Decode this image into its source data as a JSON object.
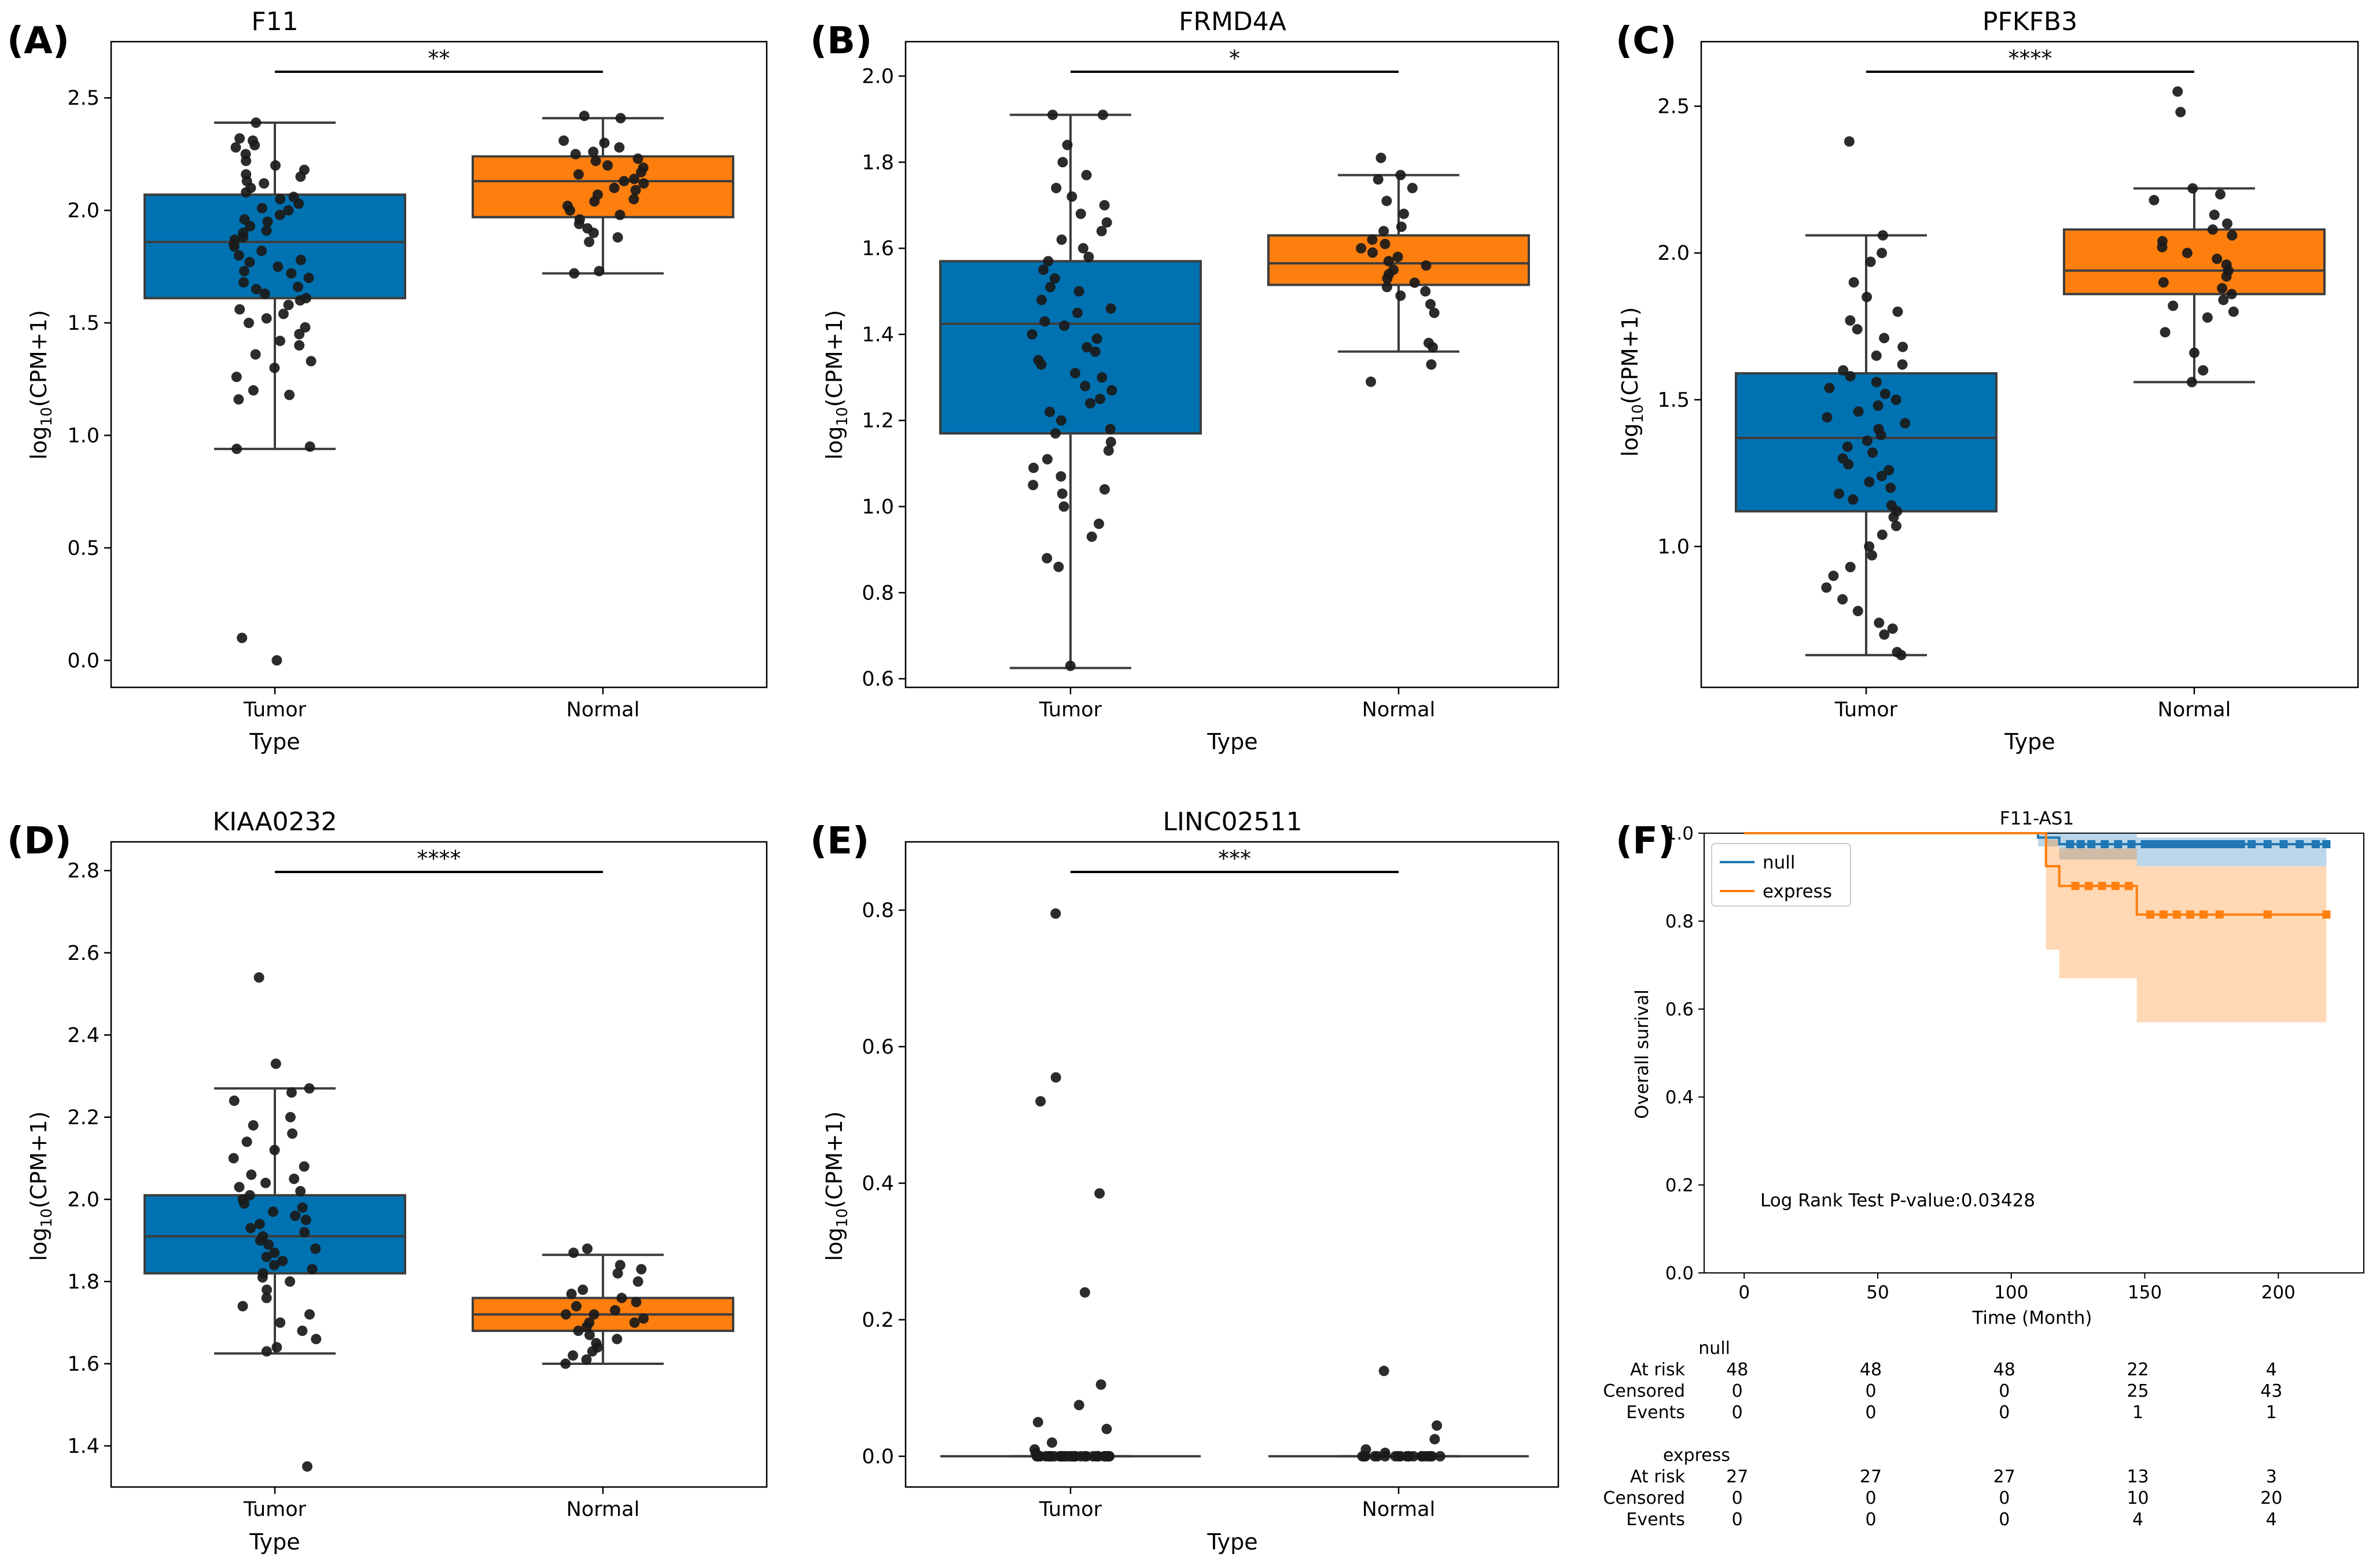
{
  "colors": {
    "tumor": "#0072b2",
    "normal": "#ff7f0e",
    "edge": "#3d3d3d",
    "point": "#1a1a1a",
    "km_null": "#1f77b4",
    "km_express": "#ff7f0e"
  },
  "chart_data": [
    {
      "panel": "(A)",
      "type": "box",
      "title": "F11",
      "xlabel": "Type",
      "ylabel": "log10(CPM+1)",
      "ylim": [
        -0.12,
        2.75
      ],
      "yticks": [
        0.0,
        0.5,
        1.0,
        1.5,
        2.0,
        2.5
      ],
      "ytick_labels": [
        "0.0",
        "0.5",
        "1.0",
        "1.5",
        "2.0",
        "2.5"
      ],
      "categories": [
        "Tumor",
        "Normal"
      ],
      "boxes": [
        {
          "name": "Tumor",
          "whisker_low": 0.94,
          "q1": 1.61,
          "median": 1.86,
          "q3": 2.07,
          "whisker_high": 2.39,
          "points": [
            2.39,
            2.32,
            2.31,
            2.29,
            2.28,
            2.25,
            2.22,
            2.2,
            2.18,
            2.16,
            2.15,
            2.13,
            2.12,
            2.1,
            2.08,
            2.06,
            2.05,
            2.03,
            2.01,
            2.0,
            1.98,
            1.96,
            1.95,
            1.93,
            1.91,
            1.9,
            1.88,
            1.87,
            1.85,
            1.84,
            1.82,
            1.8,
            1.78,
            1.77,
            1.75,
            1.73,
            1.72,
            1.7,
            1.68,
            1.66,
            1.65,
            1.63,
            1.61,
            1.6,
            1.58,
            1.56,
            1.54,
            1.52,
            1.5,
            1.48,
            1.45,
            1.42,
            1.4,
            1.36,
            1.33,
            1.3,
            1.26,
            1.2,
            1.18,
            1.16,
            0.95,
            0.94,
            0.1,
            0.0
          ]
        },
        {
          "name": "Normal",
          "whisker_low": 1.72,
          "q1": 1.97,
          "median": 2.13,
          "q3": 2.24,
          "whisker_high": 2.41,
          "points": [
            2.42,
            2.41,
            2.31,
            2.3,
            2.28,
            2.26,
            2.25,
            2.23,
            2.22,
            2.2,
            2.19,
            2.17,
            2.16,
            2.14,
            2.13,
            2.12,
            2.1,
            2.09,
            2.07,
            2.05,
            2.04,
            2.02,
            2.0,
            1.98,
            1.96,
            1.94,
            1.92,
            1.9,
            1.88,
            1.86,
            1.73,
            1.72
          ]
        }
      ],
      "significance": "**"
    },
    {
      "panel": "(B)",
      "type": "box",
      "title": "FRMD4A",
      "xlabel": "Type",
      "ylabel": "log10(CPM+1)",
      "ylim": [
        0.58,
        2.08
      ],
      "yticks": [
        0.6,
        0.8,
        1.0,
        1.2,
        1.4,
        1.6,
        1.8,
        2.0
      ],
      "ytick_labels": [
        "0.6",
        "0.8",
        "1.0",
        "1.2",
        "1.4",
        "1.6",
        "1.8",
        "2.0"
      ],
      "categories": [
        "Tumor",
        "Normal"
      ],
      "boxes": [
        {
          "name": "Tumor",
          "whisker_low": 0.625,
          "q1": 1.17,
          "median": 1.425,
          "q3": 1.57,
          "whisker_high": 1.91,
          "points": [
            1.91,
            1.91,
            1.84,
            1.8,
            1.77,
            1.74,
            1.72,
            1.7,
            1.68,
            1.66,
            1.64,
            1.62,
            1.6,
            1.58,
            1.57,
            1.55,
            1.53,
            1.51,
            1.5,
            1.48,
            1.46,
            1.45,
            1.43,
            1.42,
            1.4,
            1.39,
            1.37,
            1.36,
            1.34,
            1.33,
            1.31,
            1.3,
            1.28,
            1.27,
            1.25,
            1.24,
            1.22,
            1.2,
            1.18,
            1.17,
            1.15,
            1.13,
            1.11,
            1.09,
            1.07,
            1.05,
            1.04,
            1.03,
            1.0,
            0.96,
            0.93,
            0.88,
            0.86,
            0.63
          ]
        },
        {
          "name": "Normal",
          "whisker_low": 1.36,
          "q1": 1.515,
          "median": 1.565,
          "q3": 1.63,
          "whisker_high": 1.77,
          "points": [
            1.81,
            1.77,
            1.76,
            1.74,
            1.71,
            1.68,
            1.65,
            1.64,
            1.62,
            1.61,
            1.6,
            1.59,
            1.58,
            1.57,
            1.56,
            1.55,
            1.54,
            1.53,
            1.52,
            1.51,
            1.5,
            1.49,
            1.47,
            1.45,
            1.38,
            1.37,
            1.33,
            1.29
          ]
        }
      ],
      "significance": "*"
    },
    {
      "panel": "(C)",
      "type": "box",
      "title": "PFKFB3",
      "xlabel": "Type",
      "ylabel": "log10(CPM+1)",
      "ylim": [
        0.52,
        2.72
      ],
      "yticks": [
        1.0,
        1.5,
        2.0,
        2.5
      ],
      "ytick_labels": [
        "1.0",
        "1.5",
        "2.0",
        "2.5"
      ],
      "categories": [
        "Tumor",
        "Normal"
      ],
      "boxes": [
        {
          "name": "Tumor",
          "whisker_low": 0.63,
          "q1": 1.12,
          "median": 1.37,
          "q3": 1.59,
          "whisker_high": 2.06,
          "points": [
            2.38,
            2.06,
            2.0,
            1.97,
            1.9,
            1.85,
            1.8,
            1.77,
            1.74,
            1.71,
            1.68,
            1.65,
            1.62,
            1.6,
            1.58,
            1.56,
            1.54,
            1.52,
            1.5,
            1.48,
            1.46,
            1.44,
            1.42,
            1.4,
            1.38,
            1.36,
            1.34,
            1.32,
            1.3,
            1.28,
            1.26,
            1.24,
            1.22,
            1.2,
            1.18,
            1.16,
            1.14,
            1.12,
            1.1,
            1.07,
            1.04,
            1.0,
            0.97,
            0.93,
            0.9,
            0.86,
            0.82,
            0.78,
            0.74,
            0.72,
            0.7,
            0.64,
            0.63
          ]
        },
        {
          "name": "Normal",
          "whisker_low": 1.56,
          "q1": 1.86,
          "median": 1.94,
          "q3": 2.08,
          "whisker_high": 2.22,
          "points": [
            2.55,
            2.48,
            2.22,
            2.2,
            2.18,
            2.13,
            2.1,
            2.08,
            2.06,
            2.04,
            2.02,
            2.0,
            1.98,
            1.96,
            1.94,
            1.92,
            1.9,
            1.88,
            1.86,
            1.84,
            1.82,
            1.8,
            1.78,
            1.73,
            1.66,
            1.6,
            1.56
          ]
        }
      ],
      "significance": "****"
    },
    {
      "panel": "(D)",
      "type": "box",
      "title": "KIAA0232",
      "xlabel": "Type",
      "ylabel": "log10(CPM+1)",
      "ylim": [
        1.3,
        2.87
      ],
      "yticks": [
        1.4,
        1.6,
        1.8,
        2.0,
        2.2,
        2.4,
        2.6,
        2.8
      ],
      "ytick_labels": [
        "1.4",
        "1.6",
        "1.8",
        "2.0",
        "2.2",
        "2.4",
        "2.6",
        "2.8"
      ],
      "categories": [
        "Tumor",
        "Normal"
      ],
      "boxes": [
        {
          "name": "Tumor",
          "whisker_low": 1.625,
          "q1": 1.82,
          "median": 1.91,
          "q3": 2.01,
          "whisker_high": 2.27,
          "points": [
            2.54,
            2.33,
            2.27,
            2.26,
            2.24,
            2.2,
            2.18,
            2.16,
            2.14,
            2.12,
            2.1,
            2.08,
            2.06,
            2.05,
            2.04,
            2.03,
            2.02,
            2.01,
            2.0,
            1.99,
            1.98,
            1.97,
            1.96,
            1.95,
            1.94,
            1.93,
            1.92,
            1.91,
            1.9,
            1.89,
            1.88,
            1.87,
            1.86,
            1.85,
            1.84,
            1.83,
            1.82,
            1.81,
            1.8,
            1.78,
            1.76,
            1.74,
            1.72,
            1.7,
            1.68,
            1.66,
            1.64,
            1.63,
            1.35
          ]
        },
        {
          "name": "Normal",
          "whisker_low": 1.6,
          "q1": 1.68,
          "median": 1.72,
          "q3": 1.76,
          "whisker_high": 1.865,
          "points": [
            1.88,
            1.87,
            1.84,
            1.83,
            1.82,
            1.8,
            1.78,
            1.77,
            1.76,
            1.75,
            1.74,
            1.73,
            1.72,
            1.72,
            1.71,
            1.7,
            1.7,
            1.69,
            1.68,
            1.67,
            1.66,
            1.65,
            1.64,
            1.63,
            1.62,
            1.61,
            1.6
          ]
        }
      ],
      "significance": "****"
    },
    {
      "panel": "(E)",
      "type": "box",
      "title": "LINC02511",
      "xlabel": "Type",
      "ylabel": "log10(CPM+1)",
      "ylim": [
        -0.045,
        0.9
      ],
      "yticks": [
        0.0,
        0.2,
        0.4,
        0.6,
        0.8
      ],
      "ytick_labels": [
        "0.0",
        "0.2",
        "0.4",
        "0.6",
        "0.8"
      ],
      "categories": [
        "Tumor",
        "Normal"
      ],
      "boxes": [
        {
          "name": "Tumor",
          "whisker_low": 0.0,
          "q1": 0.0,
          "median": 0.0,
          "q3": 0.0,
          "whisker_high": 0.0,
          "points": [
            0.795,
            0.555,
            0.52,
            0.385,
            0.24,
            0.105,
            0.075,
            0.05,
            0.04,
            0.02,
            0.01,
            0.005,
            0,
            0,
            0,
            0,
            0,
            0,
            0,
            0,
            0,
            0,
            0,
            0,
            0,
            0,
            0,
            0,
            0,
            0,
            0,
            0,
            0,
            0,
            0,
            0,
            0,
            0,
            0,
            0,
            0,
            0,
            0,
            0,
            0,
            0,
            0,
            0,
            0,
            0
          ]
        },
        {
          "name": "Normal",
          "whisker_low": 0.0,
          "q1": 0.0,
          "median": 0.0,
          "q3": 0.0,
          "whisker_high": 0.0,
          "points": [
            0.125,
            0.045,
            0.025,
            0.01,
            0.005,
            0,
            0,
            0,
            0,
            0,
            0,
            0,
            0,
            0,
            0,
            0,
            0,
            0,
            0,
            0,
            0,
            0,
            0,
            0,
            0,
            0
          ]
        }
      ],
      "significance": "***"
    },
    {
      "panel": "(F)",
      "type": "line",
      "subtype": "kaplan-meier",
      "title": "F11-AS1",
      "xlabel": "Time (Month)",
      "ylabel": "Overall surival",
      "xlim": [
        -15,
        232
      ],
      "ylim": [
        0.0,
        1.0
      ],
      "xticks": [
        0,
        50,
        100,
        150,
        200
      ],
      "xtick_labels": [
        "0",
        "50",
        "100",
        "150",
        "200"
      ],
      "yticks": [
        0.0,
        0.2,
        0.4,
        0.6,
        0.8,
        1.0
      ],
      "ytick_labels": [
        "0.0",
        "0.2",
        "0.4",
        "0.6",
        "0.8",
        "1.0"
      ],
      "legend": {
        "entries": [
          "null",
          "express"
        ],
        "location": "upper-left"
      },
      "annotation": "Log Rank Test P-value:0.03428",
      "series": [
        {
          "name": "null",
          "steps": [
            [
              0,
              1.0
            ],
            [
              110,
              1.0
            ],
            [
              110,
              0.99
            ],
            [
              118,
              0.99
            ],
            [
              118,
              0.975
            ],
            [
              218,
              0.975
            ]
          ],
          "ci": [
            [
              0,
              1.0,
              1.0
            ],
            [
              110,
              0.97,
              1.0
            ],
            [
              118,
              0.94,
              1.0
            ],
            [
              147,
              0.925,
              0.99
            ],
            [
              218,
              0.925,
              0.99
            ]
          ],
          "censored_x": [
            122,
            126,
            130,
            135,
            140,
            145,
            150,
            153,
            156,
            159,
            162,
            165,
            168,
            171,
            174,
            177,
            180,
            183,
            186,
            190,
            196,
            202,
            208,
            214,
            218
          ]
        },
        {
          "name": "express",
          "steps": [
            [
              0,
              1.0
            ],
            [
              113,
              1.0
            ],
            [
              113,
              0.925
            ],
            [
              118,
              0.925
            ],
            [
              118,
              0.88
            ],
            [
              147,
              0.88
            ],
            [
              147,
              0.815
            ],
            [
              218,
              0.815
            ]
          ],
          "ci": [
            [
              0,
              1.0,
              1.0
            ],
            [
              113,
              0.735,
              0.985
            ],
            [
              118,
              0.67,
              0.965
            ],
            [
              147,
              0.57,
              0.925
            ],
            [
              218,
              0.57,
              0.925
            ]
          ],
          "censored_x": [
            124,
            129,
            134,
            139,
            144,
            152,
            157,
            162,
            167,
            172,
            178,
            196,
            218
          ]
        }
      ],
      "risk_table": {
        "time_points": [
          0,
          50,
          100,
          150,
          200
        ],
        "row_labels": [
          "At risk",
          "Censored",
          "Events"
        ],
        "groups": [
          {
            "name": "null",
            "at_risk": [
              48,
              48,
              48,
              22,
              4
            ],
            "censored": [
              0,
              0,
              0,
              25,
              43
            ],
            "events": [
              0,
              0,
              0,
              1,
              1
            ]
          },
          {
            "name": "express",
            "at_risk": [
              27,
              27,
              27,
              13,
              3
            ],
            "censored": [
              0,
              0,
              0,
              10,
              20
            ],
            "events": [
              0,
              0,
              0,
              4,
              4
            ]
          }
        ]
      }
    }
  ]
}
